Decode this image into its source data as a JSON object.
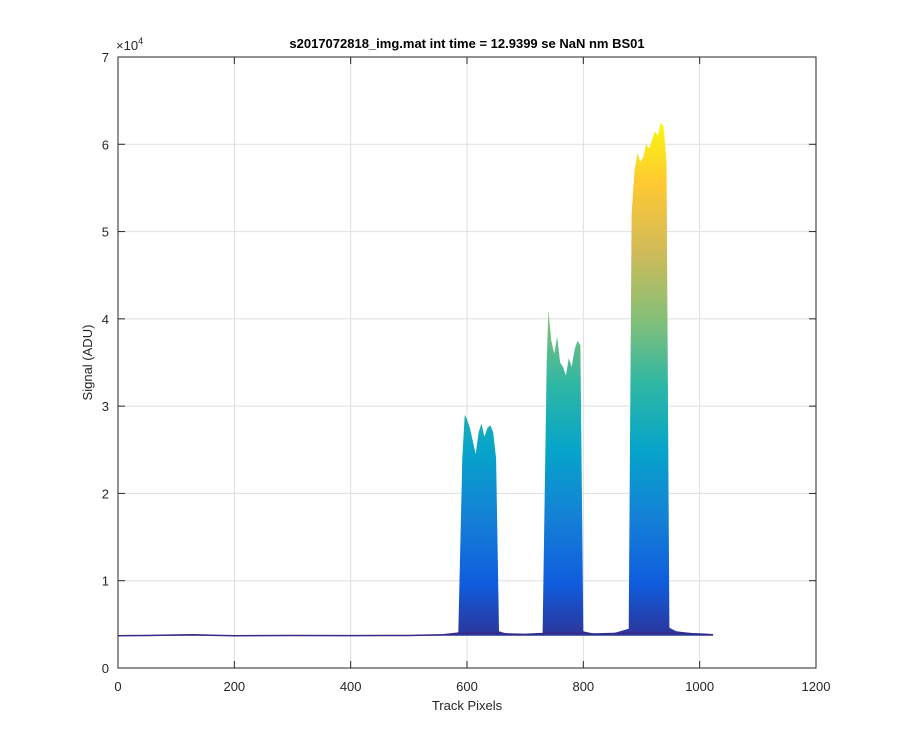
{
  "chart_data": {
    "type": "area",
    "title": "s2017072818_img.mat int time = 12.9399 se  NaN nm BS01",
    "xlabel": "Track Pixels",
    "ylabel": "Signal (ADU)",
    "xlim": [
      0,
      1200
    ],
    "ylim": [
      0,
      70000
    ],
    "y_exponent_label": "×10",
    "y_exponent_power": "4",
    "xticks": [
      0,
      200,
      400,
      600,
      800,
      1000,
      1200
    ],
    "xtick_labels": [
      "0",
      "200",
      "400",
      "600",
      "800",
      "1000",
      "1200"
    ],
    "yticks": [
      0,
      10000,
      20000,
      30000,
      40000,
      50000,
      60000,
      70000
    ],
    "ytick_labels": [
      "0",
      "1",
      "2",
      "3",
      "4",
      "5",
      "6",
      "7"
    ],
    "grid": true,
    "colormap": [
      "#352a87",
      "#0f5cdd",
      "#1481d6",
      "#06a4ca",
      "#2eb7a4",
      "#87bf77",
      "#d1bb59",
      "#fec832",
      "#f9fb0e"
    ],
    "series": [
      {
        "baseline": 3700,
        "x": [
          0,
          50,
          100,
          130,
          160,
          200,
          300,
          400,
          500,
          560,
          585,
          592,
          596,
          600,
          605,
          610,
          615,
          620,
          625,
          630,
          635,
          640,
          645,
          650,
          655,
          670,
          700,
          730,
          737,
          740,
          745,
          750,
          755,
          760,
          765,
          770,
          775,
          780,
          785,
          790,
          795,
          800,
          820,
          850,
          878,
          883,
          888,
          893,
          898,
          903,
          908,
          913,
          918,
          923,
          928,
          933,
          938,
          943,
          948,
          960,
          1000,
          1023
        ],
        "y": [
          3700,
          3720,
          3780,
          3820,
          3760,
          3700,
          3720,
          3710,
          3720,
          3800,
          4000,
          24000,
          29000,
          28500,
          27500,
          26000,
          24500,
          27000,
          28000,
          26500,
          27500,
          27800,
          27000,
          24000,
          4200,
          3900,
          3850,
          3950,
          35000,
          41000,
          37500,
          36000,
          38000,
          35000,
          34500,
          33500,
          35500,
          34500,
          36500,
          37500,
          37000,
          4200,
          3900,
          3950,
          4500,
          52000,
          57000,
          59000,
          58000,
          58500,
          60000,
          59500,
          60500,
          61500,
          61000,
          62500,
          62000,
          58000,
          4600,
          4200,
          3900,
          3800
        ]
      }
    ]
  }
}
